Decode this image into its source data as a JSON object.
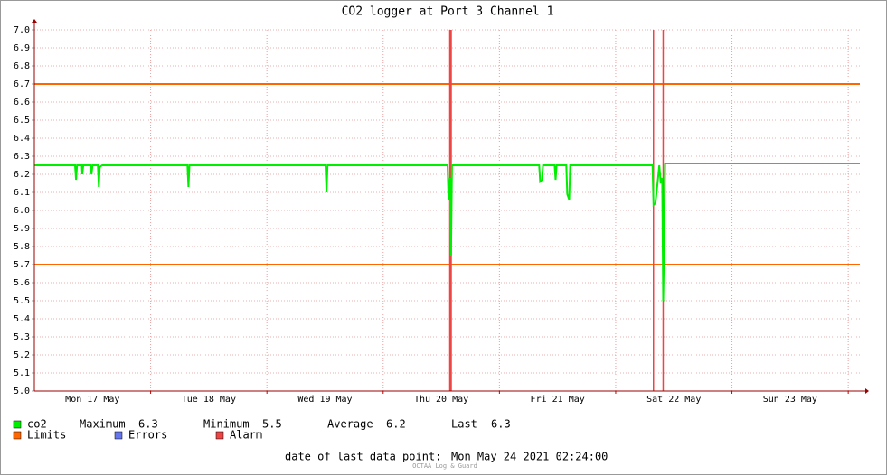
{
  "chart_data": {
    "type": "line",
    "title": "CO2 logger at Port 3 Channel 1",
    "xlim": [
      0,
      170.4
    ],
    "xticks": [
      {
        "value": 12,
        "label": "Mon 17 May"
      },
      {
        "value": 36,
        "label": "Tue 18 May"
      },
      {
        "value": 60,
        "label": "Wed 19 May"
      },
      {
        "value": 84,
        "label": "Thu 20 May"
      },
      {
        "value": 108,
        "label": "Fri 21 May"
      },
      {
        "value": 132,
        "label": "Sat 22 May"
      },
      {
        "value": 156,
        "label": "Sun 23 May"
      }
    ],
    "xgrid": [
      24,
      48,
      72,
      96,
      120,
      144,
      168
    ],
    "ylim": [
      5,
      7
    ],
    "yticks": [
      {
        "value": 5,
        "label": "5.0"
      },
      5.1,
      5.2,
      5.3,
      5.4,
      5.5,
      5.6,
      5.7,
      5.8,
      5.9,
      {
        "value": 6,
        "label": "6.0"
      },
      6.1,
      6.2,
      6.3,
      6.4,
      6.5,
      6.6,
      6.7,
      6.8,
      6.9,
      {
        "value": 7,
        "label": "7.0"
      }
    ],
    "grid": true,
    "series": [
      {
        "name": "co2",
        "color": "#00ee00",
        "x": [
          0,
          8.4,
          8.6,
          8.8,
          9.8,
          9.9,
          10.1,
          11.6,
          11.8,
          12.0,
          13.1,
          13.3,
          13.5,
          14,
          31.6,
          31.8,
          32,
          60.1,
          60.3,
          60.5,
          85.3,
          85.5,
          85.8,
          86,
          86.2,
          104.2,
          104.4,
          104.8,
          105,
          107.4,
          107.6,
          107.8,
          109.8,
          110,
          110.4,
          110.6,
          127.6,
          127.8,
          128.2,
          128.6,
          129,
          129.3,
          129.6,
          129.8,
          130,
          130.2,
          170.4
        ],
        "values": [
          6.25,
          6.25,
          6.17,
          6.25,
          6.25,
          6.2,
          6.25,
          6.25,
          6.2,
          6.25,
          6.25,
          6.13,
          6.24,
          6.25,
          6.25,
          6.13,
          6.25,
          6.25,
          6.1,
          6.25,
          6.25,
          6.06,
          6.18,
          5.75,
          6.25,
          6.25,
          6.16,
          6.17,
          6.25,
          6.25,
          6.17,
          6.25,
          6.25,
          6.09,
          6.06,
          6.25,
          6.25,
          6.03,
          6.04,
          6.14,
          6.25,
          6.15,
          6.18,
          5.5,
          5.82,
          6.26,
          6.26
        ],
        "stats": [
          {
            "label": "Maximum",
            "value": 6.3
          },
          {
            "label": "Minimum",
            "value": 5.5
          },
          {
            "label": "Average",
            "value": 6.2
          },
          {
            "label": "Last",
            "value": 6.3
          }
        ]
      }
    ],
    "limits": {
      "name": "Limits",
      "color": "#ff6600",
      "values": [
        6.7,
        5.7
      ]
    },
    "errors": {
      "name": "Errors",
      "color": "#6677ee"
    },
    "alarm": {
      "name": "Alarm",
      "color": "#ee4444",
      "x": [
        85.9,
        127.8,
        129.8
      ]
    },
    "footer": {
      "label": "date of last data point:",
      "value": "Mon May 24 2021 02:24:00"
    },
    "credit": "OCTAA Log & Guard"
  }
}
